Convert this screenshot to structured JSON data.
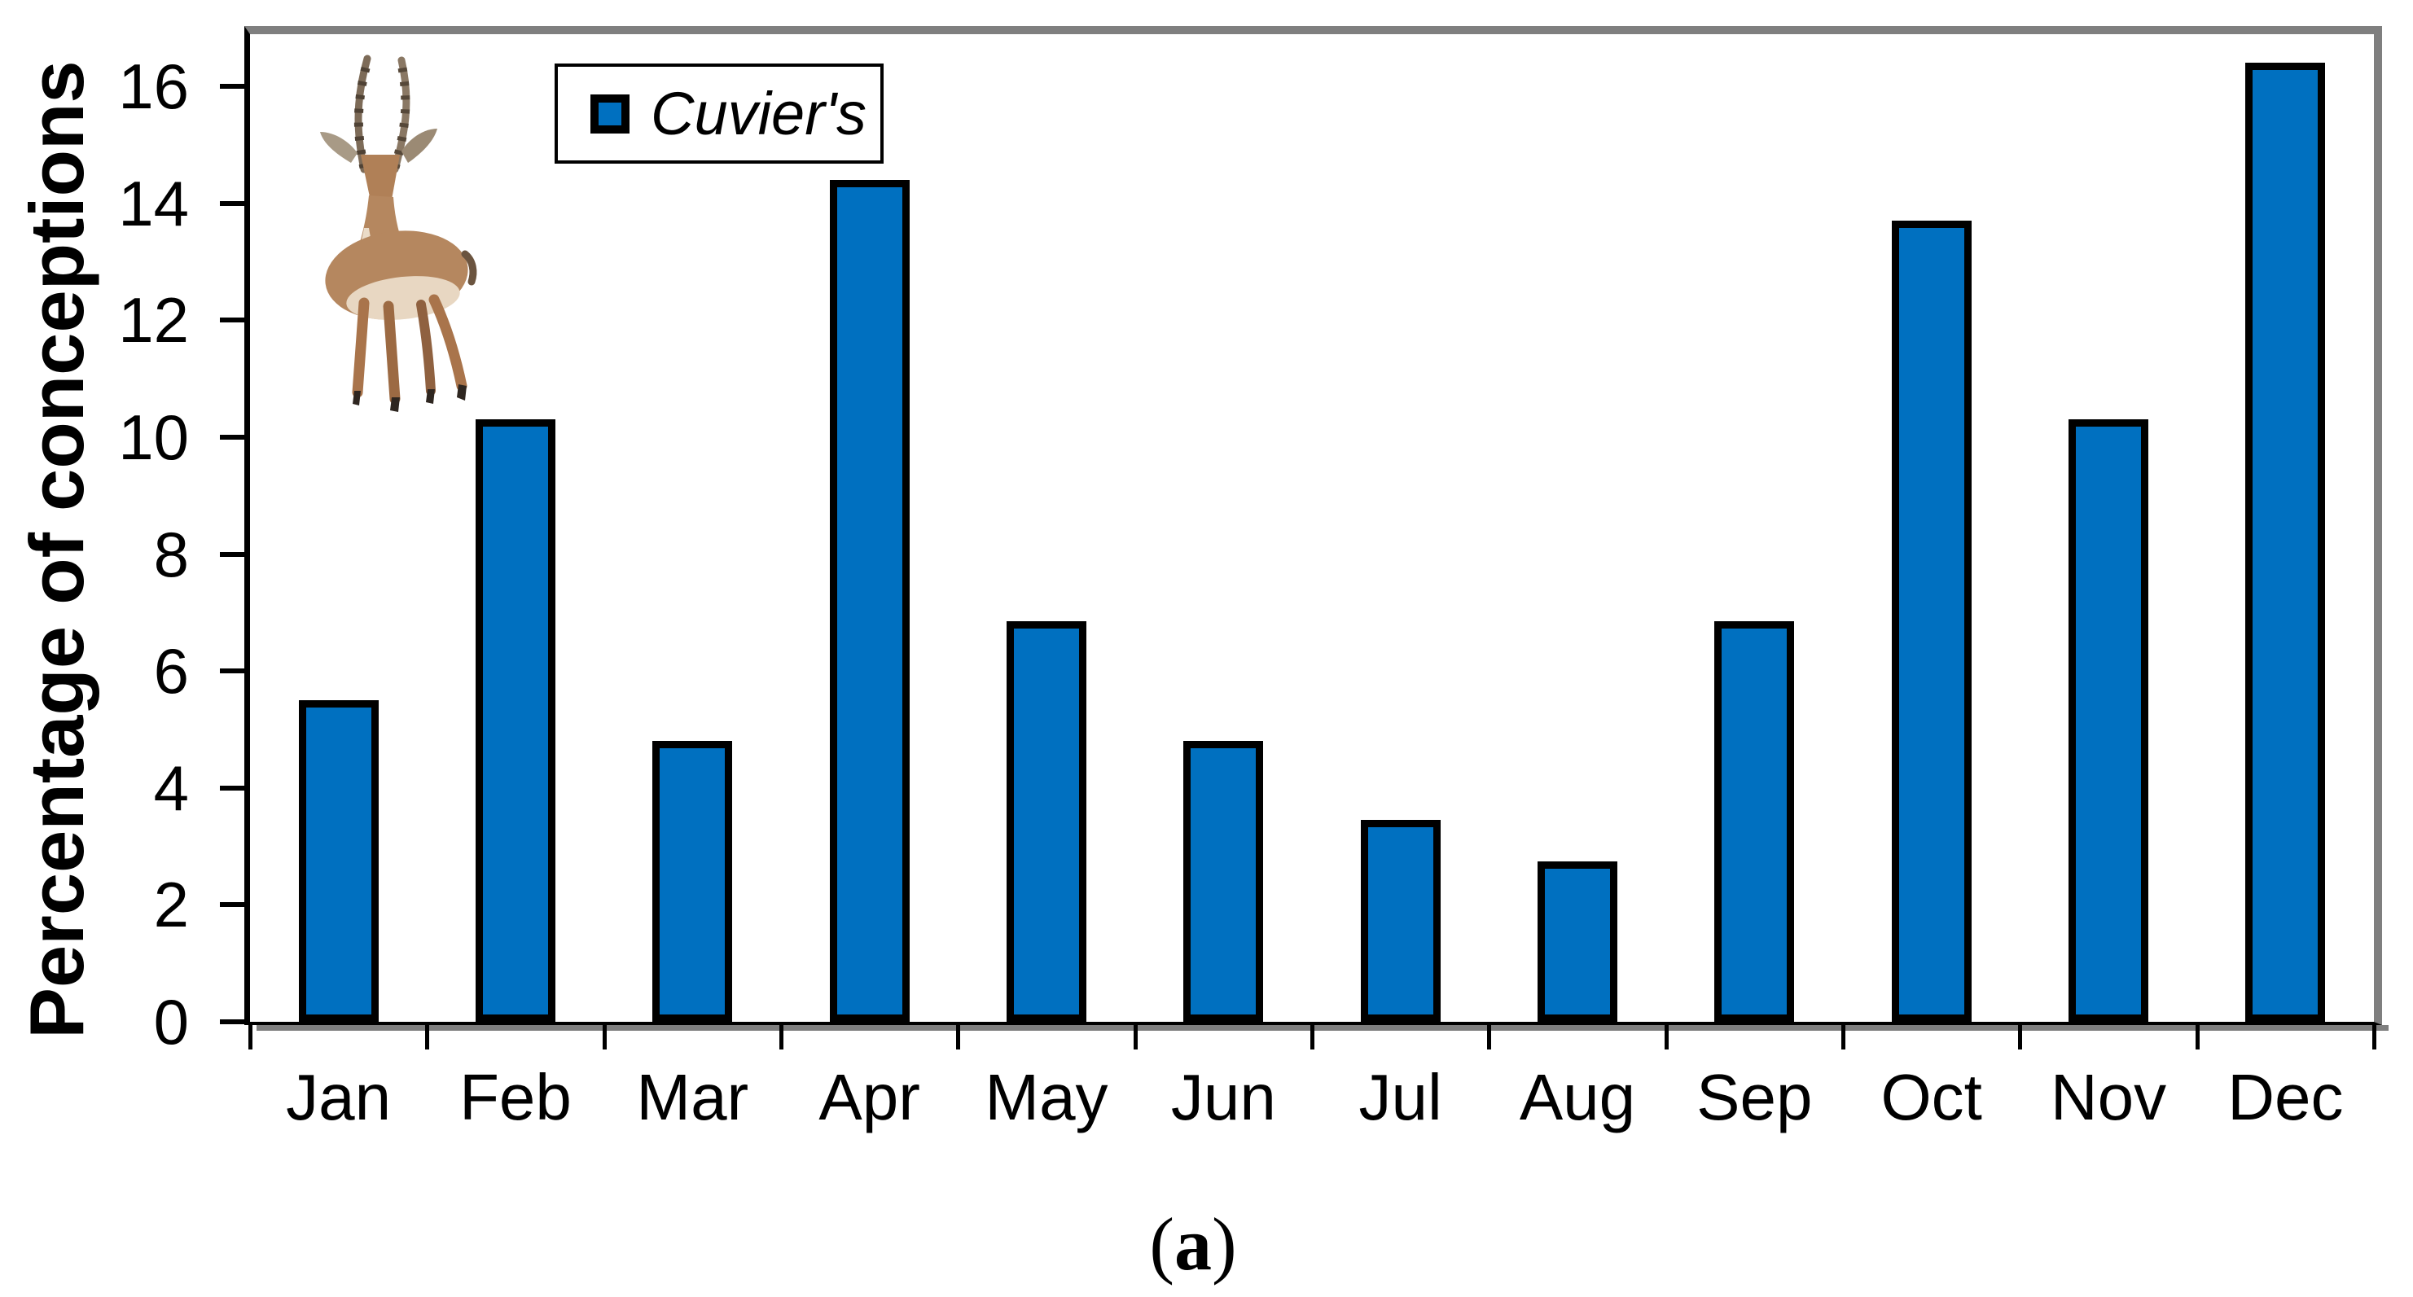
{
  "figure": {
    "y_axis_title": "Percentage of conceptions"
  },
  "legend": {
    "label": "Cuvier's"
  },
  "caption": {
    "open": "(",
    "letter": "a",
    "close": ")"
  },
  "colors": {
    "bar_fill": "#0070C0",
    "bar_outline": "#000000",
    "frame_shadow_gray": "#7f7f7f"
  },
  "illustration": {
    "name": "gazelle-image",
    "subject": "Cuvier's gazelle"
  },
  "chart_data": {
    "type": "bar",
    "title": "",
    "categories": [
      "Jan",
      "Feb",
      "Mar",
      "Apr",
      "May",
      "Jun",
      "Jul",
      "Aug",
      "Sep",
      "Oct",
      "Nov",
      "Dec"
    ],
    "values": [
      5.5,
      10.3,
      4.8,
      14.4,
      6.85,
      4.8,
      3.45,
      2.75,
      6.85,
      13.7,
      10.3,
      16.4
    ],
    "series": [
      {
        "name": "Cuvier's",
        "values": [
          5.5,
          10.3,
          4.8,
          14.4,
          6.85,
          4.8,
          3.45,
          2.75,
          6.85,
          13.7,
          10.3,
          16.4
        ]
      }
    ],
    "xlabel": "",
    "ylabel": "Percentage of conceptions",
    "ylim": [
      0,
      16
    ],
    "yticks": [
      0,
      2,
      4,
      6,
      8,
      10,
      12,
      14,
      16
    ],
    "grid": false,
    "legend_position": "top-left-inside"
  }
}
